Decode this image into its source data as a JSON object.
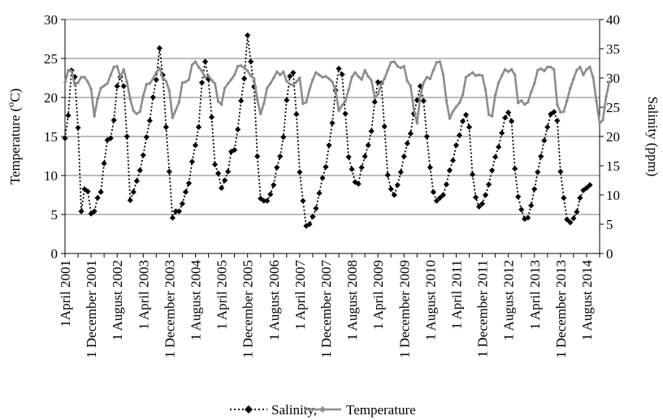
{
  "chart_data": {
    "type": "line",
    "title": "",
    "y_left_label": "Temperature (°C)",
    "y_left_label_main": "Temperature (",
    "y_left_label_sup": "o",
    "y_left_label_end": "C)",
    "y_right_label": "Salinity (ppm)",
    "y_left_range": [
      0,
      30
    ],
    "y_left_ticks": [
      "0",
      "5",
      "10",
      "15",
      "20",
      "25",
      "30"
    ],
    "y_right_range": [
      0,
      40
    ],
    "y_right_ticks": [
      "0",
      "5",
      "10",
      "15",
      "20",
      "25",
      "30",
      "35",
      "40"
    ],
    "x_range": [
      0,
      164
    ],
    "x_tick_labels": [
      "1April 2001",
      "1 December 2001",
      "1 August 2002",
      "1 April 2003",
      "1 December 2003",
      "1 August 2004",
      "1 April 2005",
      "1 December 2005",
      "1 August 2006",
      "1 April 2007",
      "1 December 2007",
      "1 August 2008",
      "1 April 2009",
      "1 December 2009",
      "1 August 2010",
      "1 April 2011",
      "1 December 2011",
      "1 August 2012",
      "1 April 2013",
      "1 December 2013",
      "1 August 2014"
    ],
    "grid": true,
    "legend_position": "bottom",
    "colors": {
      "salinity": "#000000",
      "temperature": "#8c8c8c",
      "grid": "#a6a6a6"
    },
    "series": [
      {
        "name": "Salinity,",
        "axis": "right",
        "style": "dotted-diamond",
        "values": [
          19.7,
          23.6,
          31.3,
          30.2,
          21.5,
          7.2,
          11.0,
          10.6,
          6.8,
          7.2,
          9.5,
          10.5,
          15.4,
          19.4,
          19.7,
          22.8,
          28.6,
          30.2,
          28.6,
          20.0,
          9.1,
          10.5,
          12.4,
          14.2,
          16.8,
          19.9,
          22.7,
          26.7,
          29.7,
          35.1,
          30.5,
          21.6,
          14.0,
          6.1,
          7.2,
          7.2,
          8.5,
          10.5,
          12.0,
          15.7,
          18.5,
          21.6,
          29.2,
          32.8,
          29.8,
          23.3,
          15.2,
          13.7,
          11.2,
          12.5,
          14.0,
          17.4,
          17.7,
          21.2,
          26.1,
          29.9,
          37.3,
          32.8,
          28.5,
          16.6,
          9.4,
          9.0,
          9.0,
          10.1,
          11.7,
          14.7,
          16.6,
          19.9,
          26.2,
          30.3,
          30.9,
          23.8,
          13.9,
          9.0,
          4.7,
          5.0,
          6.3,
          7.7,
          10.3,
          12.9,
          14.8,
          18.5,
          22.3,
          27.9,
          31.6,
          30.6,
          23.9,
          16.5,
          14.4,
          12.2,
          11.9,
          14.7,
          16.6,
          18.5,
          20.9,
          25.9,
          29.3,
          29.1,
          21.7,
          13.4,
          11.0,
          10.0,
          11.7,
          13.9,
          16.6,
          18.8,
          20.5,
          23.9,
          26.2,
          28.6,
          26.1,
          20.0,
          14.7,
          10.5,
          9.0,
          9.5,
          10.0,
          11.8,
          14.2,
          15.9,
          18.5,
          20.2,
          22.6,
          23.7,
          21.6,
          13.5,
          9.6,
          8.0,
          8.5,
          10.0,
          11.8,
          14.2,
          16.5,
          18.2,
          20.6,
          23.2,
          24.1,
          22.6,
          14.5,
          9.7,
          7.5,
          5.9,
          6.1,
          8.2,
          11.0,
          13.9,
          16.6,
          19.3,
          21.6,
          23.8,
          24.2,
          22.7,
          14.0,
          9.5,
          5.8,
          5.3,
          6.0,
          7.1,
          9.5,
          10.8,
          11.2,
          11.7
        ]
      },
      {
        "name": "Temperature",
        "axis": "left",
        "style": "solid-diamond",
        "values": [
          21.9,
          23.5,
          23.4,
          21.6,
          21.9,
          22.6,
          22.6,
          22.0,
          21.1,
          17.6,
          19.8,
          21.2,
          21.5,
          21.8,
          22.9,
          23.9,
          24.0,
          22.6,
          23.6,
          22.0,
          19.8,
          18.3,
          17.9,
          18.2,
          20.2,
          21.7,
          21.8,
          22.4,
          23.2,
          23.8,
          22.5,
          22.1,
          20.9,
          17.4,
          18.4,
          19.4,
          21.9,
          22.0,
          22.3,
          24.2,
          24.6,
          23.9,
          23.4,
          22.6,
          22.8,
          22.2,
          21.8,
          19.5,
          19.1,
          21.2,
          21.8,
          22.3,
          22.9,
          24.0,
          24.1,
          23.8,
          23.4,
          22.8,
          22.4,
          19.7,
          17.9,
          19.2,
          21.2,
          21.8,
          22.5,
          23.3,
          22.9,
          23.3,
          22.1,
          21.7,
          21.6,
          22.0,
          22.5,
          19.2,
          19.4,
          21.0,
          22.3,
          23.2,
          22.9,
          22.6,
          22.7,
          22.4,
          22.0,
          20.9,
          18.3,
          19.0,
          19.5,
          21.0,
          22.6,
          23.2,
          22.7,
          22.3,
          23.5,
          22.7,
          22.2,
          20.0,
          20.4,
          21.7,
          22.4,
          23.5,
          24.5,
          24.6,
          24.0,
          23.8,
          24.0,
          22.1,
          21.5,
          18.5,
          16.7,
          20.2,
          21.9,
          22.6,
          22.4,
          23.5,
          24.5,
          24.6,
          23.0,
          19.6,
          17.3,
          18.2,
          18.8,
          19.3,
          20.3,
          22.6,
          22.9,
          23.2,
          22.8,
          22.9,
          22.8,
          21.0,
          17.8,
          17.6,
          20.3,
          21.9,
          22.8,
          23.6,
          23.3,
          23.6,
          22.9,
          19.3,
          19.6,
          19.1,
          19.4,
          20.7,
          21.8,
          23.5,
          23.7,
          23.4,
          23.9,
          23.9,
          23.6,
          19.1,
          18.1,
          18.2,
          19.6,
          21.2,
          22.4,
          23.5,
          23.9,
          22.9,
          23.6,
          23.9,
          22.6,
          19.6,
          16.7,
          17.1,
          20.1,
          22.0
        ]
      }
    ]
  }
}
